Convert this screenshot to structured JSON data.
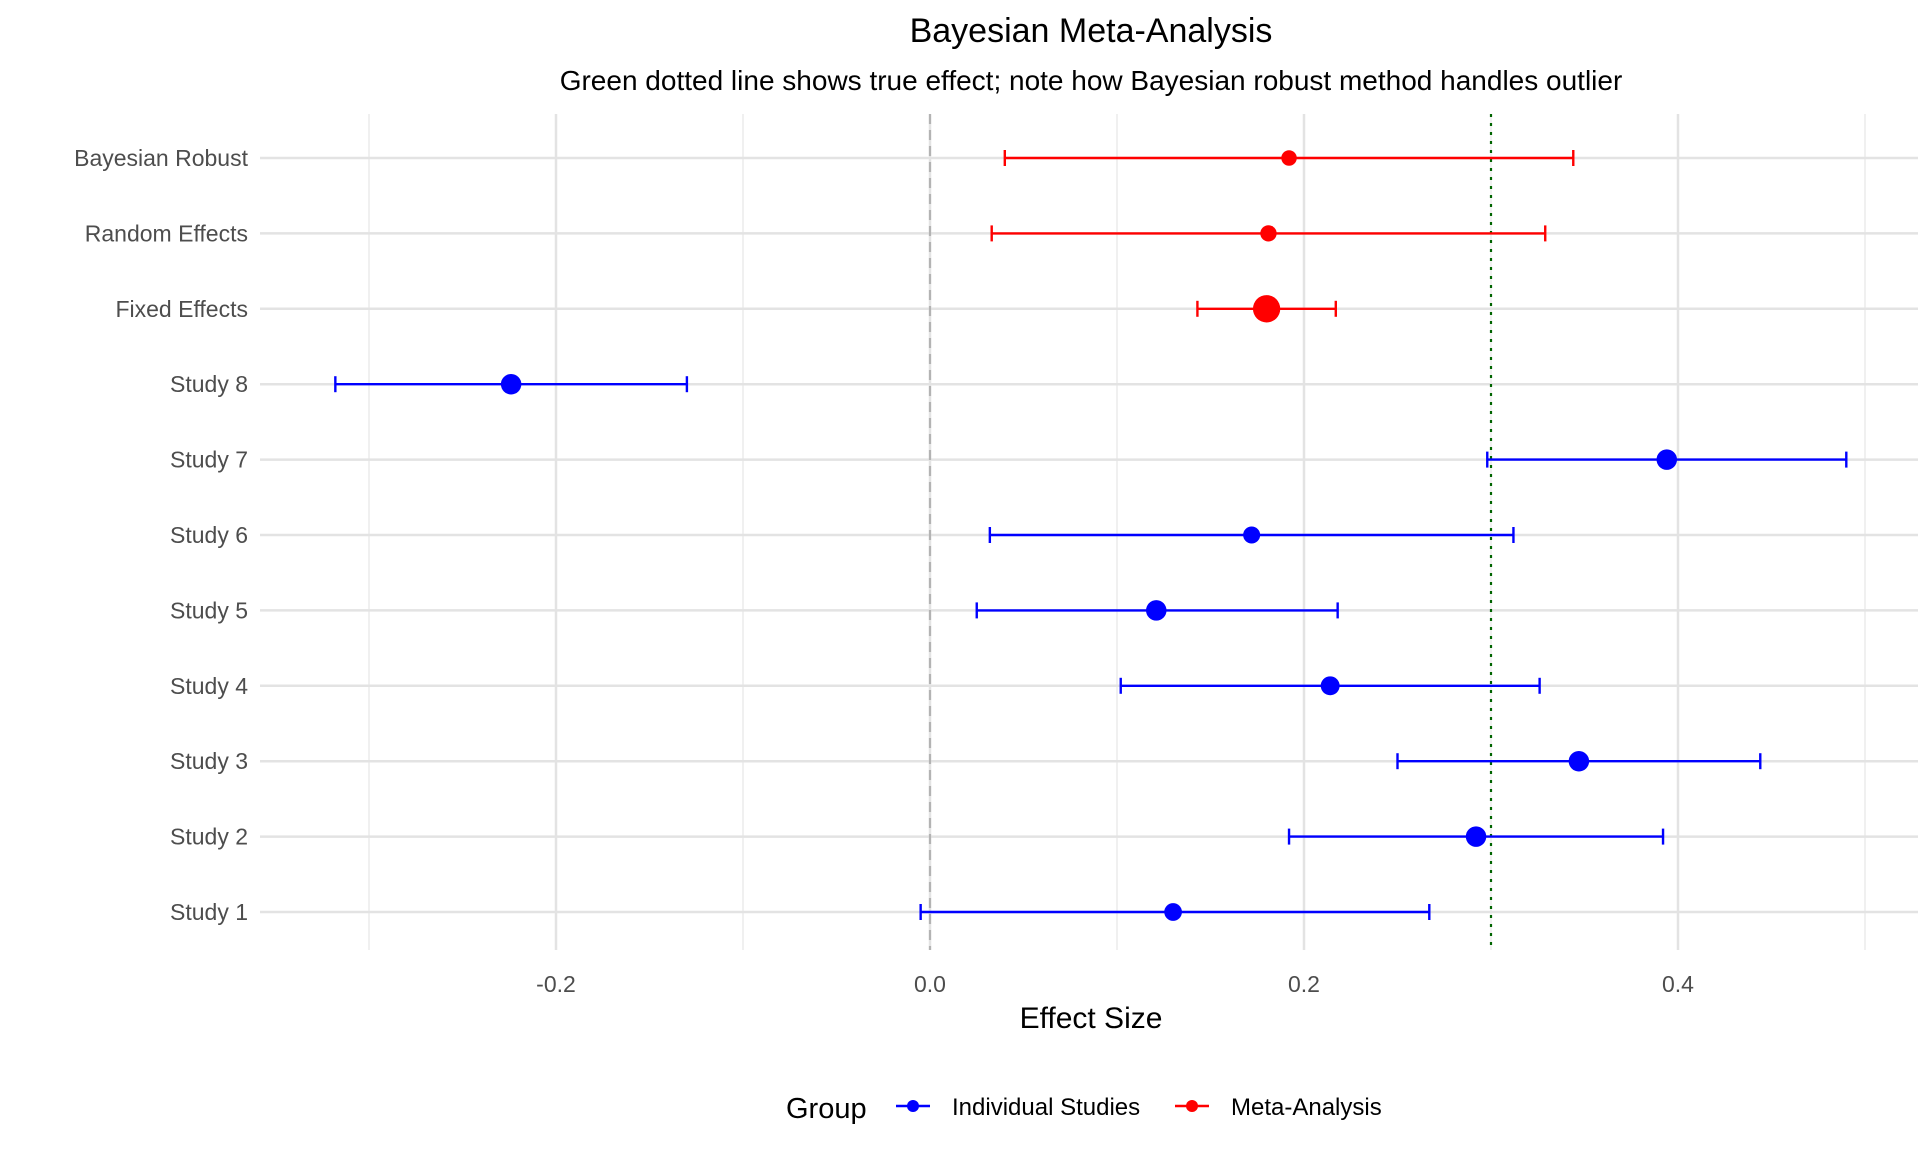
{
  "chart_data": {
    "type": "forest",
    "title": "Bayesian Meta-Analysis",
    "subtitle": "Green dotted line shows true effect; note how Bayesian robust method handles outlier",
    "xlabel": "Effect Size",
    "ylabel": "",
    "xlim": [
      -0.36,
      0.53
    ],
    "x_ticks": [
      -0.2,
      0.0,
      0.2,
      0.4
    ],
    "x_tick_labels": [
      "-0.2",
      "0.0",
      "0.2",
      "0.4"
    ],
    "reference_lines": [
      {
        "x": 0.0,
        "style": "dashed",
        "color": "#b3b3b3"
      },
      {
        "x": 0.3,
        "style": "dotted",
        "color": "#006400"
      }
    ],
    "grid": true,
    "legend": {
      "title": "Group",
      "position": "bottom",
      "entries": [
        {
          "name": "Individual Studies",
          "color": "#0000ff"
        },
        {
          "name": "Meta-Analysis",
          "color": "#ff0000"
        }
      ]
    },
    "categories": [
      "Study 1",
      "Study 2",
      "Study 3",
      "Study 4",
      "Study 5",
      "Study 6",
      "Study 7",
      "Study 8",
      "Fixed Effects",
      "Random Effects",
      "Bayesian Robust"
    ],
    "points": [
      {
        "label": "Study 1",
        "group": "Individual Studies",
        "estimate": 0.13,
        "lower": -0.005,
        "upper": 0.267,
        "weight": 0.6
      },
      {
        "label": "Study 2",
        "group": "Individual Studies",
        "estimate": 0.292,
        "lower": 0.192,
        "upper": 0.392,
        "weight": 1.1
      },
      {
        "label": "Study 3",
        "group": "Individual Studies",
        "estimate": 0.347,
        "lower": 0.25,
        "upper": 0.444,
        "weight": 1.1
      },
      {
        "label": "Study 4",
        "group": "Individual Studies",
        "estimate": 0.214,
        "lower": 0.102,
        "upper": 0.326,
        "weight": 0.8
      },
      {
        "label": "Study 5",
        "group": "Individual Studies",
        "estimate": 0.121,
        "lower": 0.025,
        "upper": 0.218,
        "weight": 1.1
      },
      {
        "label": "Study 6",
        "group": "Individual Studies",
        "estimate": 0.172,
        "lower": 0.032,
        "upper": 0.312,
        "weight": 0.5
      },
      {
        "label": "Study 7",
        "group": "Individual Studies",
        "estimate": 0.394,
        "lower": 0.298,
        "upper": 0.49,
        "weight": 1.1
      },
      {
        "label": "Study 8",
        "group": "Individual Studies",
        "estimate": -0.224,
        "lower": -0.318,
        "upper": -0.13,
        "weight": 1.1
      },
      {
        "label": "Fixed Effects",
        "group": "Meta-Analysis",
        "estimate": 0.18,
        "lower": 0.143,
        "upper": 0.217,
        "weight": 3.0
      },
      {
        "label": "Random Effects",
        "group": "Meta-Analysis",
        "estimate": 0.181,
        "lower": 0.033,
        "upper": 0.329,
        "weight": 0.4
      },
      {
        "label": "Bayesian Robust",
        "group": "Meta-Analysis",
        "estimate": 0.192,
        "lower": 0.04,
        "upper": 0.344,
        "weight": 0.3
      }
    ]
  }
}
